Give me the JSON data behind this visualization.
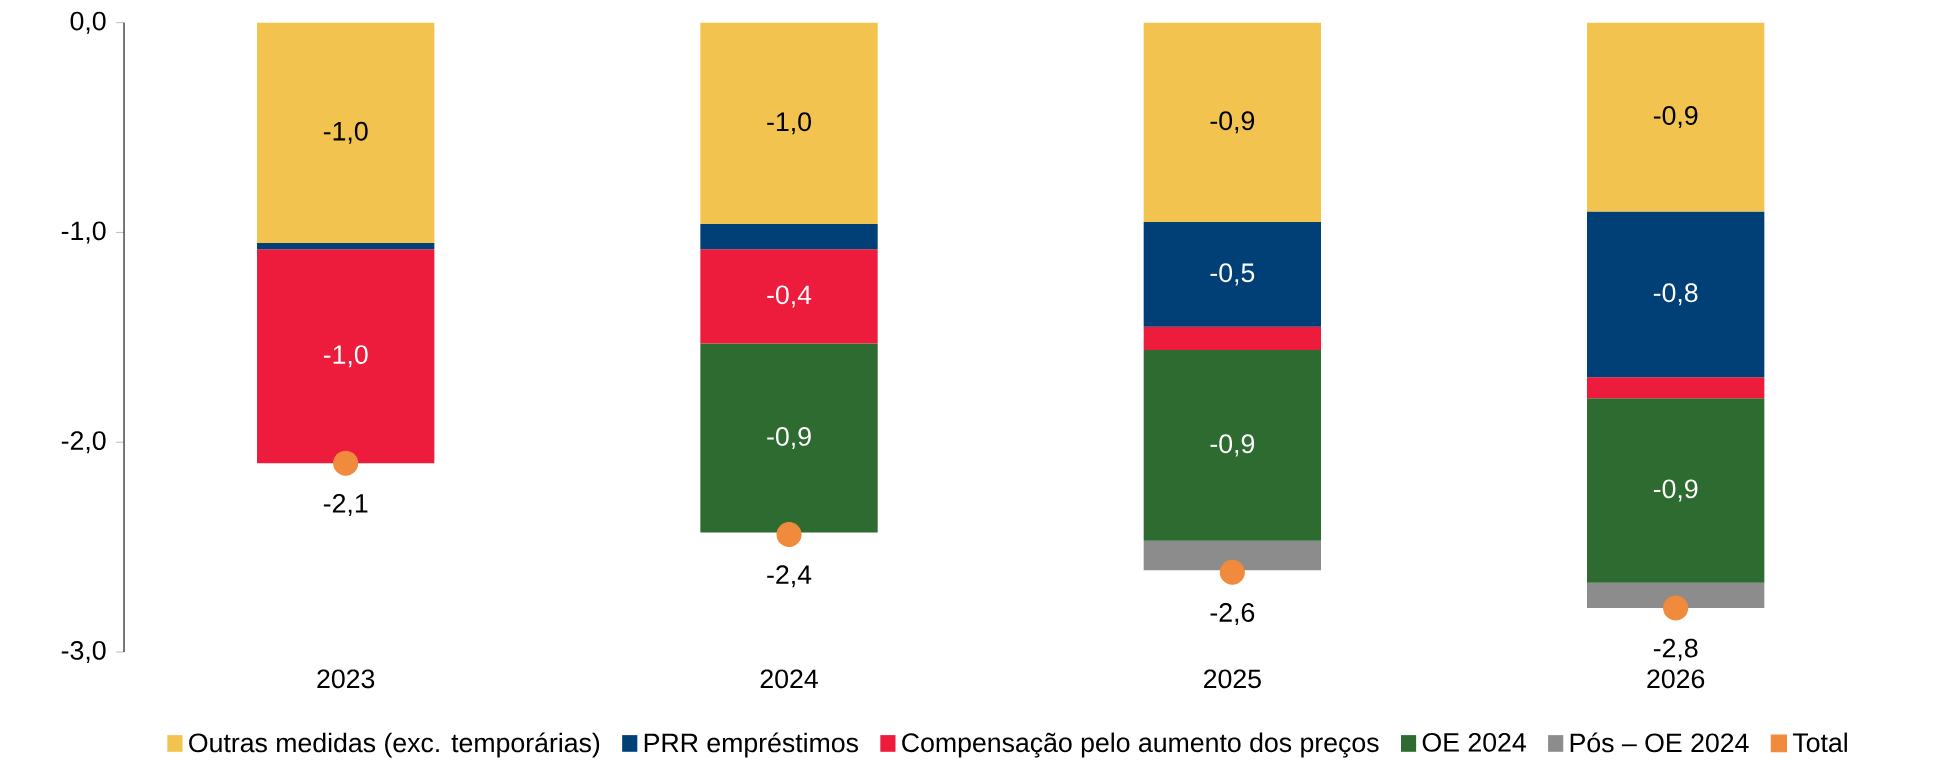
{
  "chart_data": {
    "type": "bar",
    "stacked": true,
    "categories": [
      "2023",
      "2024",
      "2025",
      "2026"
    ],
    "ylim": [
      -3,
      0
    ],
    "yticks": [
      {
        "value": -3,
        "label": "-3,0"
      },
      {
        "value": -2,
        "label": "-2,0"
      },
      {
        "value": -1,
        "label": "-1,0"
      },
      {
        "value": 0,
        "label": "0,0"
      }
    ],
    "legend": "bottom",
    "grid": false,
    "series": [
      {
        "name": "Outras medidas (exc. temporárias)",
        "color": "#f2c44f",
        "values": [
          -1.05,
          -0.96,
          -0.95,
          -0.9
        ],
        "value_labels": [
          "-1,0",
          "-1,0",
          "-0,9",
          "-0,9"
        ]
      },
      {
        "name": "PRR empréstimos",
        "color": "#004077",
        "values": [
          -0.03,
          -0.12,
          -0.5,
          -0.79
        ],
        "value_labels": [
          null,
          null,
          "-0,5",
          "-0,8"
        ]
      },
      {
        "name": "Compensação pelo aumento dos preços",
        "color": "#ee1c3c",
        "values": [
          -1.02,
          -0.45,
          -0.11,
          -0.1
        ],
        "value_labels": [
          "-1,0",
          "-0,4",
          null,
          null
        ]
      },
      {
        "name": "OE 2024",
        "color": "#2e6b30",
        "values": [
          0,
          -0.9,
          -0.91,
          -0.88
        ],
        "value_labels": [
          null,
          "-0,9",
          "-0,9",
          "-0,9"
        ]
      },
      {
        "name": "Pós – OE 2024",
        "color": "#8c8c8c",
        "values": [
          0,
          0,
          -0.14,
          -0.12
        ]
      },
      {
        "name": "Total",
        "type": "scatter",
        "color": "#f08a3c",
        "values": [
          -2.1,
          -2.44,
          -2.62,
          -2.79
        ],
        "value_labels": [
          "-2,1",
          "-2,4",
          "-2,6",
          "-2,8"
        ]
      }
    ]
  }
}
